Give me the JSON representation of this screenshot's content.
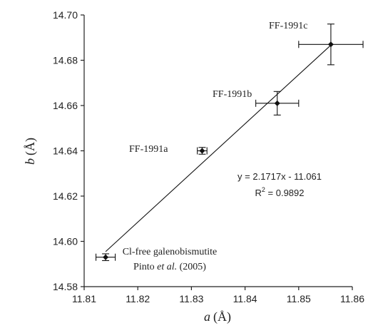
{
  "chart_data": {
    "type": "scatter",
    "title": "",
    "xlabel": {
      "var": "a",
      "unit": "(Å)"
    },
    "ylabel": {
      "var": "b",
      "unit": "(Å)"
    },
    "xlim": [
      11.81,
      11.86
    ],
    "ylim": [
      14.58,
      14.7
    ],
    "xticks": [
      11.81,
      11.82,
      11.83,
      11.84,
      11.85,
      11.86
    ],
    "yticks": [
      14.58,
      14.6,
      14.62,
      14.64,
      14.66,
      14.68,
      14.7
    ],
    "xtick_labels": [
      "11.81",
      "11.82",
      "11.83",
      "11.84",
      "11.85",
      "11.86"
    ],
    "ytick_labels": [
      "14.58",
      "14.60",
      "14.62",
      "14.64",
      "14.66",
      "14.68",
      "14.70"
    ],
    "grid": false,
    "points": [
      {
        "x": 11.814,
        "y": 14.593,
        "xerr": 0.0018,
        "yerr": 0.0015
      },
      {
        "x": 11.832,
        "y": 14.64,
        "xerr": 0.0009,
        "yerr": 0.0015
      },
      {
        "x": 11.846,
        "y": 14.661,
        "xerr": 0.004,
        "yerr": 0.0052
      },
      {
        "x": 11.856,
        "y": 14.687,
        "xerr": 0.006,
        "yerr": 0.009
      }
    ],
    "point_labels": [
      {
        "line1": "Cl-free galenobismutite",
        "line2_pre": "Pinto ",
        "line2_em": "et al.",
        "line2_post": " (2005)"
      },
      {
        "text": "FF-1991a"
      },
      {
        "text": "FF-1991b"
      },
      {
        "text": "FF-1991c"
      }
    ],
    "trendline": {
      "slope": 2.1717,
      "intercept": -11.061,
      "r2": 0.9892
    },
    "equation_text": "y = 2.1717x - 11.061",
    "r2_prefix": "R",
    "r2_sup": "2",
    "r2_value": " = 0.9892"
  }
}
